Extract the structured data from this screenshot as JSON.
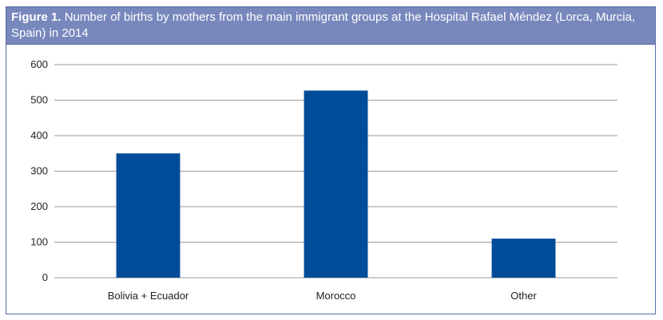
{
  "chart_data": {
    "type": "bar",
    "title_label": "Figure  1.",
    "title": "Number of births by mothers from the main immigrant groups at the Hospital Rafael Méndez (Lorca, Murcia, Spain) in 2014",
    "categories": [
      "Bolivia + Ecuador",
      "Morocco",
      "Other"
    ],
    "values": [
      350,
      527,
      110
    ],
    "ylim": [
      0,
      600
    ],
    "yticks": [
      0,
      100,
      200,
      300,
      400,
      500,
      600
    ],
    "grid": true,
    "colors": {
      "bar": "#004c99",
      "header": "#7888bd",
      "grid": "#999999"
    }
  }
}
